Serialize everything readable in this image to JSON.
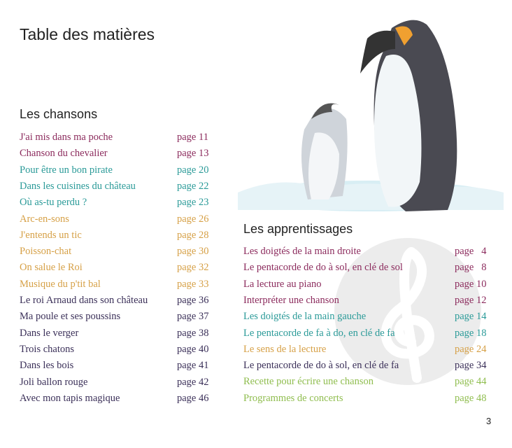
{
  "title": "Table des matières",
  "chansons": {
    "heading": "Les chansons",
    "items": [
      {
        "label": "J'ai mis dans ma poche",
        "page": "page 11",
        "color": "maroon"
      },
      {
        "label": "Chanson du chevalier",
        "page": "page 13",
        "color": "maroon"
      },
      {
        "label": "Pour être un bon pirate",
        "page": "page 20",
        "color": "teal"
      },
      {
        "label": "Dans les cuisines du château",
        "page": "page 22",
        "color": "teal"
      },
      {
        "label": "Où as-tu perdu ?",
        "page": "page 23",
        "color": "teal"
      },
      {
        "label": "Arc-en-sons",
        "page": "page 26",
        "color": "orange"
      },
      {
        "label": "J'entends un tic",
        "page": "page 28",
        "color": "orange"
      },
      {
        "label": "Poisson-chat",
        "page": "page 30",
        "color": "orange"
      },
      {
        "label": "On salue le Roi",
        "page": "page 32",
        "color": "orange"
      },
      {
        "label": "Musique du p'tit bal",
        "page": "page 33",
        "color": "orange"
      },
      {
        "label": "Le roi Arnaud dans son château",
        "page": "page 36",
        "color": "dark"
      },
      {
        "label": "Ma poule et ses poussins",
        "page": "page 37",
        "color": "dark"
      },
      {
        "label": "Dans le verger",
        "page": "page 38",
        "color": "dark"
      },
      {
        "label": "Trois chatons",
        "page": "page 40",
        "color": "dark"
      },
      {
        "label": "Dans les bois",
        "page": "page 41",
        "color": "dark"
      },
      {
        "label": "Joli ballon rouge",
        "page": "page 42",
        "color": "dark"
      },
      {
        "label": "Avec mon tapis magique",
        "page": "page 46",
        "color": "dark"
      }
    ]
  },
  "apprentissages": {
    "heading": "Les apprentissages",
    "items": [
      {
        "label": "Les doigtés de la main droite",
        "page": "page   4",
        "color": "maroon"
      },
      {
        "label": "Le pentacorde de do à sol, en clé de sol",
        "page": "page   8",
        "color": "maroon"
      },
      {
        "label": "La lecture au piano",
        "page": "page 10",
        "color": "maroon"
      },
      {
        "label": "Interpréter une chanson",
        "page": "page 12",
        "color": "maroon"
      },
      {
        "label": "Les doigtés de la main gauche",
        "page": "page 14",
        "color": "teal"
      },
      {
        "label": "Le pentacorde de fa à do, en clé de fa",
        "page": "page 18",
        "color": "teal"
      },
      {
        "label": "Le sens de la lecture",
        "page": "page 24",
        "color": "orange"
      },
      {
        "label": "Le pentacorde de do à sol, en clé de fa",
        "page": "page 34",
        "color": "dark"
      },
      {
        "label": "Recette pour écrire une chanson",
        "page": "page 44",
        "color": "green"
      },
      {
        "label": "Programmes de concerts",
        "page": "page 48",
        "color": "green"
      }
    ]
  },
  "page_number": "3",
  "colors": {
    "maroon": "#8b2a5c",
    "teal": "#2a9a98",
    "orange": "#d6a046",
    "dark": "#3a2f58",
    "green": "#8fbd4e"
  }
}
